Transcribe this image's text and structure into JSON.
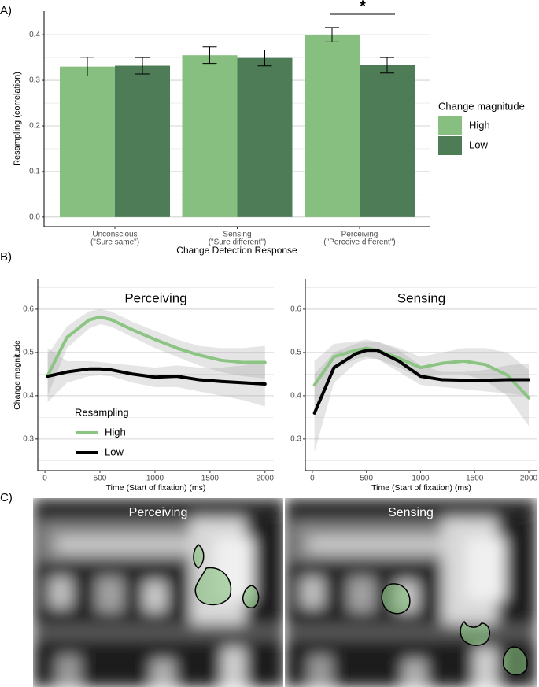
{
  "panel_labels": [
    "A)",
    "B)",
    "C)"
  ],
  "chart_data": [
    {
      "type": "bar",
      "ylabel": "Resampling (correlation)",
      "xlabel": "Change Detection Response",
      "categories": [
        [
          "Unconscious",
          "(\"Sure same\")"
        ],
        [
          "Sensing",
          "(\"Sure different\")"
        ],
        [
          "Perceiving",
          "(\"Perceive different\")"
        ]
      ],
      "series": [
        {
          "name": "High",
          "color": "#86bf7f",
          "values": [
            0.33,
            0.355,
            0.4
          ],
          "errors": [
            0.0205,
            0.018,
            0.016
          ]
        },
        {
          "name": "Low",
          "color": "#4e7c57",
          "values": [
            0.332,
            0.349,
            0.333
          ],
          "errors": [
            0.018,
            0.0175,
            0.017
          ]
        }
      ],
      "ylim": [
        -0.021,
        0.452
      ],
      "yticks": [
        {
          "value": 0,
          "label": "0.0"
        },
        0.1,
        0.2,
        0.3,
        0.4
      ],
      "minor_yticks": [
        0.05,
        0.15,
        0.25,
        0.35
      ],
      "grid": true,
      "legend_title": "Change magnitude",
      "legend": "right",
      "annotation": "*"
    },
    {
      "type": "line",
      "title": "Perceiving",
      "ylabel": "Change magnitude",
      "xlabel": "Time (Start of fixation) (ms)",
      "x": [
        25,
        200,
        400,
        500,
        600,
        800,
        1000,
        1200,
        1400,
        1600,
        1800,
        2000
      ],
      "series": [
        {
          "name": "High",
          "color": "#8cc583",
          "values": [
            0.447,
            0.535,
            0.575,
            0.582,
            0.576,
            0.552,
            0.53,
            0.51,
            0.494,
            0.482,
            0.477,
            0.477
          ],
          "lower": [
            0.4,
            0.51,
            0.555,
            0.565,
            0.56,
            0.535,
            0.51,
            0.49,
            0.47,
            0.455,
            0.445,
            0.44
          ],
          "upper": [
            0.495,
            0.56,
            0.595,
            0.6,
            0.595,
            0.57,
            0.55,
            0.53,
            0.515,
            0.51,
            0.51,
            0.515
          ]
        },
        {
          "name": "Low",
          "color": "#000000",
          "values": [
            0.445,
            0.455,
            0.462,
            0.462,
            0.46,
            0.45,
            0.443,
            0.445,
            0.437,
            0.433,
            0.43,
            0.427
          ],
          "lower": [
            0.385,
            0.43,
            0.445,
            0.447,
            0.445,
            0.43,
            0.42,
            0.42,
            0.41,
            0.4,
            0.39,
            0.375
          ],
          "upper": [
            0.51,
            0.48,
            0.48,
            0.478,
            0.475,
            0.47,
            0.465,
            0.47,
            0.465,
            0.465,
            0.47,
            0.48
          ]
        }
      ],
      "xlim": [
        -65,
        2080
      ],
      "xticks": [
        0,
        500,
        1000,
        1500,
        2000
      ],
      "ylim": [
        0.227,
        0.669
      ],
      "yticks": [
        0.3,
        0.4,
        0.5,
        0.6
      ],
      "minor_yticks": [
        0.25,
        0.35,
        0.45,
        0.55,
        0.65
      ],
      "grid": true,
      "legend_title": "Resampling",
      "legend": "bottom-left"
    },
    {
      "type": "line",
      "title": "Sensing",
      "xlabel": "Time (Start of fixation) (ms)",
      "x": [
        20,
        200,
        400,
        500,
        600,
        800,
        1000,
        1200,
        1400,
        1600,
        1800,
        2000
      ],
      "series": [
        {
          "color": "#8cc583",
          "values": [
            0.425,
            0.49,
            0.505,
            0.51,
            0.505,
            0.487,
            0.465,
            0.475,
            0.48,
            0.472,
            0.448,
            0.395
          ],
          "lower": [
            0.37,
            0.46,
            0.485,
            0.49,
            0.485,
            0.465,
            0.44,
            0.45,
            0.45,
            0.435,
            0.4,
            0.33
          ],
          "upper": [
            0.48,
            0.52,
            0.525,
            0.53,
            0.525,
            0.51,
            0.49,
            0.5,
            0.51,
            0.51,
            0.5,
            0.46
          ]
        },
        {
          "color": "#000000",
          "values": [
            0.36,
            0.465,
            0.497,
            0.505,
            0.505,
            0.48,
            0.445,
            0.437,
            0.436,
            0.436,
            0.437,
            0.437
          ],
          "lower": [
            0.27,
            0.43,
            0.475,
            0.485,
            0.485,
            0.455,
            0.425,
            0.42,
            0.415,
            0.41,
            0.405,
            0.4
          ],
          "upper": [
            0.45,
            0.5,
            0.52,
            0.525,
            0.525,
            0.505,
            0.47,
            0.455,
            0.455,
            0.46,
            0.47,
            0.475
          ]
        }
      ],
      "xlim": [
        -65,
        2080
      ],
      "xticks": [
        0,
        500,
        1000,
        1500,
        2000
      ],
      "ylim": [
        0.227,
        0.669
      ],
      "yticks": [
        0.3,
        0.4,
        0.5,
        0.6
      ],
      "minor_yticks": [
        0.25,
        0.35,
        0.45,
        0.55,
        0.65
      ],
      "grid": true
    }
  ],
  "images": [
    {
      "title": "Perceiving"
    },
    {
      "title": "Sensing"
    }
  ]
}
